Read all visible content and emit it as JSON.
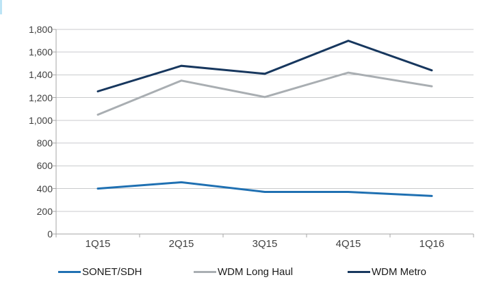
{
  "page": {
    "background": "#ffffff"
  },
  "artifact_bar": {
    "color": "#bce4f5"
  },
  "chart_data": {
    "type": "line",
    "categories": [
      "1Q15",
      "2Q15",
      "3Q15",
      "4Q15",
      "1Q16"
    ],
    "series": [
      {
        "name": "SONET/SDH",
        "color": "#1f70b2",
        "values": [
          400,
          455,
          370,
          370,
          335
        ]
      },
      {
        "name": "WDM Long Haul",
        "color": "#a9aeb2",
        "values": [
          1050,
          1350,
          1205,
          1420,
          1300
        ]
      },
      {
        "name": "WDM Metro",
        "color": "#17375e",
        "values": [
          1255,
          1480,
          1410,
          1700,
          1440
        ]
      }
    ],
    "ylim": [
      0,
      1800
    ],
    "ytick_step": 200,
    "ytick_labels": [
      "0",
      "200",
      "400",
      "600",
      "800",
      "1,000",
      "1,200",
      "1,400",
      "1,600",
      "1,800"
    ],
    "grid": true,
    "legend_position": "bottom",
    "colors": {
      "gridline": "#c8cacc",
      "axis": "#a6a6a6",
      "tick": "#a6a6a6",
      "axis_label_text": "#3f3f3f",
      "legend_text": "#1a1a1a"
    }
  }
}
